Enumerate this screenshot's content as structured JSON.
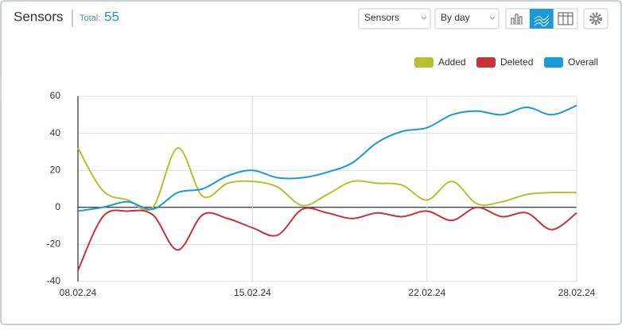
{
  "header": {
    "title": "Sensors",
    "total_label": "Total:",
    "total": 55,
    "dropdowns": [
      "Sensors",
      "By day"
    ]
  },
  "chart_data": {
    "type": "line",
    "x": [
      "08.02.24",
      "09.02.24",
      "10.02.24",
      "11.02.24",
      "12.02.24",
      "13.02.24",
      "14.02.24",
      "15.02.24",
      "16.02.24",
      "17.02.24",
      "18.02.24",
      "19.02.24",
      "20.02.24",
      "21.02.24",
      "22.02.24",
      "23.02.24",
      "24.02.24",
      "25.02.24",
      "26.02.24",
      "27.02.24",
      "28.02.24"
    ],
    "xticks": [
      "08.02.24",
      "15.02.24",
      "22.02.24",
      "28.02.24"
    ],
    "series": [
      {
        "name": "Added",
        "color": "#b5c22f",
        "values": [
          32,
          9,
          4,
          0,
          32,
          6,
          13,
          14,
          11,
          1,
          7,
          14,
          13,
          12,
          4,
          14,
          2,
          3,
          7,
          8,
          8
        ]
      },
      {
        "name": "Deleted",
        "color": "#c8323a",
        "values": [
          -34,
          -5,
          -2,
          -4,
          -23,
          -4,
          -6,
          -11,
          -15,
          -1,
          -3,
          -6,
          -3,
          -5,
          -2,
          -7,
          0,
          -5,
          -3,
          -12,
          -3
        ]
      },
      {
        "name": "Overall",
        "color": "#1a9ad6",
        "values": [
          -2,
          0,
          3,
          -1,
          8,
          10,
          17,
          20,
          16,
          16,
          19,
          24,
          35,
          41,
          43,
          50,
          52,
          50,
          54,
          50,
          55
        ]
      }
    ],
    "ylim": [
      -40,
      60
    ],
    "yticks": [
      -40,
      -20,
      0,
      20,
      40,
      60
    ],
    "grid": true,
    "legend": "top-right"
  }
}
